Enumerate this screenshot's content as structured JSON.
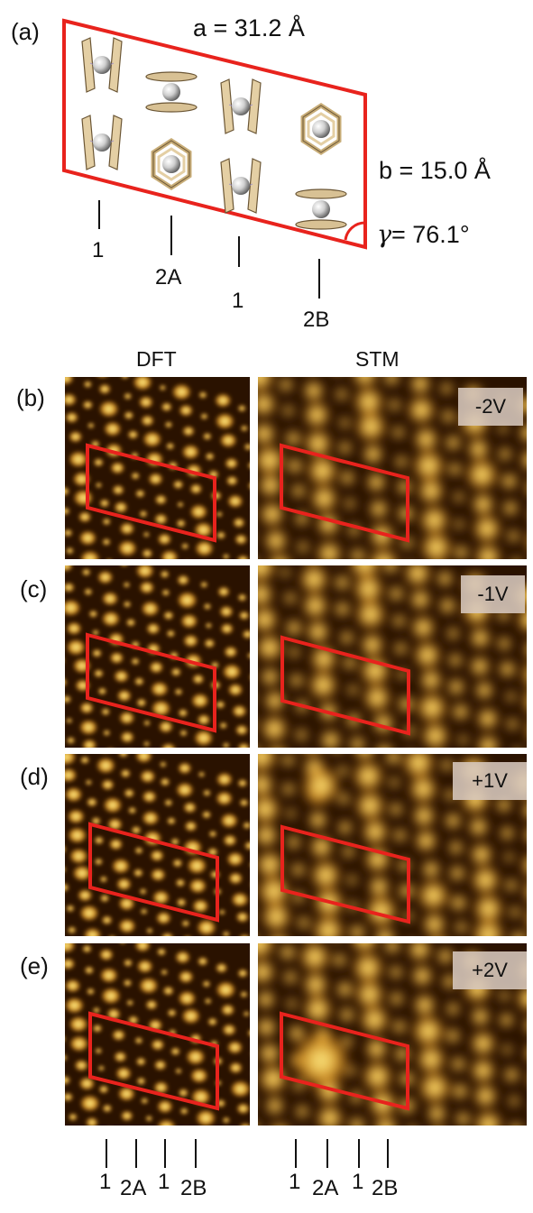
{
  "panel_a": {
    "letter": "(a)",
    "lattice_a": "a = 31.2 Å",
    "lattice_b": "b = 15.0 Å",
    "gamma_symbol": "γ",
    "gamma_value": " = 76.1°",
    "row_labels": [
      "1",
      "2A",
      "1",
      "2B"
    ]
  },
  "columns": {
    "left": "DFT",
    "right": "STM"
  },
  "panels": [
    {
      "letter": "(b)",
      "bias": "-2V"
    },
    {
      "letter": "(c)",
      "bias": "-1V"
    },
    {
      "letter": "(d)",
      "bias": "+1V"
    },
    {
      "letter": "(e)",
      "bias": "+2V"
    }
  ],
  "bottom_labels": {
    "dft": [
      "1",
      "2A",
      "1",
      "2B"
    ],
    "stm": [
      "1",
      "2A",
      "1",
      "2B"
    ]
  },
  "colors": {
    "unit_cell": "#e8231d",
    "dark": "#2a1200",
    "bright": "#fff08a",
    "mid": "#b86e12"
  }
}
